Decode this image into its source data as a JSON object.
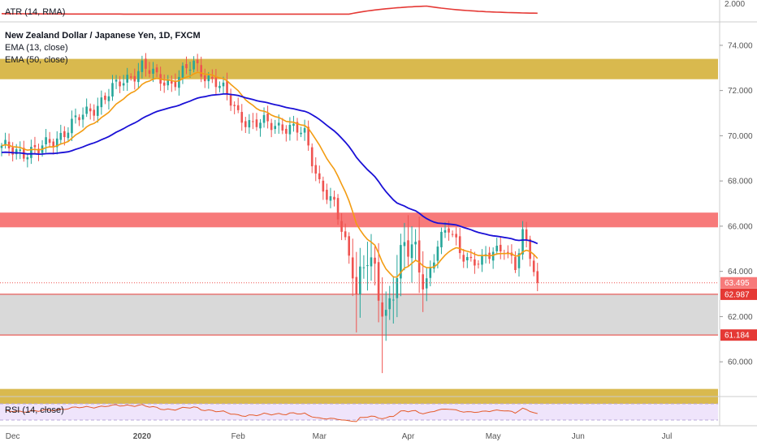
{
  "chart_data": {
    "type": "candlestick",
    "title": "New Zealand Dollar / Japanese Yen, 1D, FXCM",
    "x_axis": {
      "labels": [
        "Dec",
        "2020",
        "Feb",
        "Mar",
        "Apr",
        "May",
        "Jun",
        "Jul"
      ]
    },
    "y_axis": {
      "range": [
        58.5,
        75.0
      ],
      "ticks": [
        "74.000",
        "72.000",
        "70.000",
        "68.000",
        "66.000",
        "64.000",
        "62.000",
        "60.000"
      ]
    },
    "atr": {
      "label": "ATR (14, RMA)",
      "tick": "2.000",
      "color": "#e53935"
    },
    "ema13": {
      "label": "EMA (13, close)",
      "color": "#f39c12"
    },
    "ema50": {
      "label": "EMA (50, close)",
      "color": "#1a10d6"
    },
    "rsi": {
      "label": "RSI (14, close)",
      "color": "#e55b2b"
    },
    "zones": [
      {
        "type": "resistance",
        "from": 72.5,
        "to": 73.4,
        "color": "#d9b94e"
      },
      {
        "type": "resistance",
        "from": 65.95,
        "to": 66.6,
        "color": "#f77a7a"
      },
      {
        "type": "support",
        "from": 61.184,
        "to": 62.987,
        "color": "#d9d9d9"
      },
      {
        "type": "support",
        "from": 58.0,
        "to": 58.8,
        "color": "#d9b94e"
      }
    ],
    "price_tags": [
      {
        "value": "63.495",
        "color": "#f77a7a"
      },
      {
        "value": "62.987",
        "color": "#e53935"
      },
      {
        "value": "61.184",
        "color": "#e53935"
      }
    ],
    "last_close": 63.495,
    "colors": {
      "up": "#26a69a",
      "down": "#ef5350"
    },
    "series_anchors": [
      {
        "day": 0,
        "close": 69.4
      },
      {
        "day": 10,
        "close": 69.3
      },
      {
        "day": 20,
        "close": 70.6
      },
      {
        "day": 30,
        "close": 72.0
      },
      {
        "day": 38,
        "close": 73.1
      },
      {
        "day": 42,
        "close": 72.5
      },
      {
        "day": 46,
        "close": 72.4
      },
      {
        "day": 52,
        "close": 73.1
      },
      {
        "day": 58,
        "close": 72.4
      },
      {
        "day": 64,
        "close": 71.0
      },
      {
        "day": 68,
        "close": 70.5
      },
      {
        "day": 76,
        "close": 70.5
      },
      {
        "day": 82,
        "close": 70.0
      },
      {
        "day": 86,
        "close": 68.0
      },
      {
        "day": 90,
        "close": 66.8
      },
      {
        "day": 93,
        "close": 65.3
      },
      {
        "day": 96,
        "close": 63.5
      },
      {
        "day": 99,
        "close": 64.6
      },
      {
        "day": 102,
        "close": 62.8
      },
      {
        "day": 104,
        "close": 62.1
      },
      {
        "day": 106,
        "close": 63.7
      },
      {
        "day": 109,
        "close": 65.0
      },
      {
        "day": 112,
        "close": 64.5
      },
      {
        "day": 115,
        "close": 63.7
      },
      {
        "day": 118,
        "close": 65.2
      },
      {
        "day": 121,
        "close": 65.8
      },
      {
        "day": 124,
        "close": 65.0
      },
      {
        "day": 127,
        "close": 64.5
      },
      {
        "day": 130,
        "close": 64.3
      },
      {
        "day": 133,
        "close": 64.9
      },
      {
        "day": 136,
        "close": 65.2
      },
      {
        "day": 139,
        "close": 64.1
      },
      {
        "day": 141,
        "close": 65.5
      },
      {
        "day": 143,
        "close": 64.8
      },
      {
        "day": 145,
        "close": 63.5
      }
    ]
  }
}
